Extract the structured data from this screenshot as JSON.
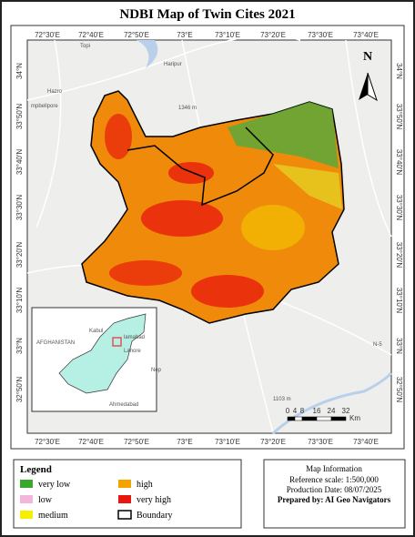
{
  "title": "NDBI  Map of Twin Cites 2021",
  "grid": {
    "top": [
      "72°30'E",
      "72°40'E",
      "72°50'E",
      "73°E",
      "73°10'E",
      "73°20'E",
      "73°30'E",
      "73°40'E"
    ],
    "bottom": [
      "72°30'E",
      "72°40'E",
      "72°50'E",
      "73°E",
      "73°10'E",
      "73°20'E",
      "73°30'E",
      "73°40'E"
    ],
    "left": [
      "34°N",
      "33°50'N",
      "33°40'N",
      "33°30'N",
      "33°20'N",
      "33°10'N",
      "33°N",
      "32°50'N"
    ],
    "right": [
      "34°N",
      "33°50'N",
      "33°40'N",
      "33°30'N",
      "33°20'N",
      "33°10'N",
      "33°N",
      "32°50'N"
    ]
  },
  "places": [
    "Topi",
    "Haripur",
    "Hazro",
    "mpbellpore",
    "1346 m",
    "1103 m",
    "N-5"
  ],
  "inset": {
    "labels": [
      "AFGHANISTAN",
      "Kabul",
      "lamabad",
      "Lahore",
      "Ahmedabad",
      "Nep"
    ]
  },
  "north": "N",
  "scale": {
    "ticks": [
      "0",
      "4",
      "8",
      "16",
      "24",
      "32"
    ],
    "unit": "Km"
  },
  "legend": {
    "title": "Legend",
    "items": [
      {
        "label": "very low",
        "color": "#3aa82c"
      },
      {
        "label": "high",
        "color": "#f5a300"
      },
      {
        "label": "low",
        "color": "#f2b6dc"
      },
      {
        "label": "very high",
        "color": "#e8160c"
      },
      {
        "label": "medium",
        "color": "#f6f000"
      },
      {
        "label": "Boundary",
        "color": "#ffffff"
      }
    ]
  },
  "info": {
    "title": "Map Information",
    "lines": [
      "Reference scale: 1:500,000",
      "Production Date: 08/07/2025",
      "Prepared by: AI Geo Navigators"
    ]
  }
}
